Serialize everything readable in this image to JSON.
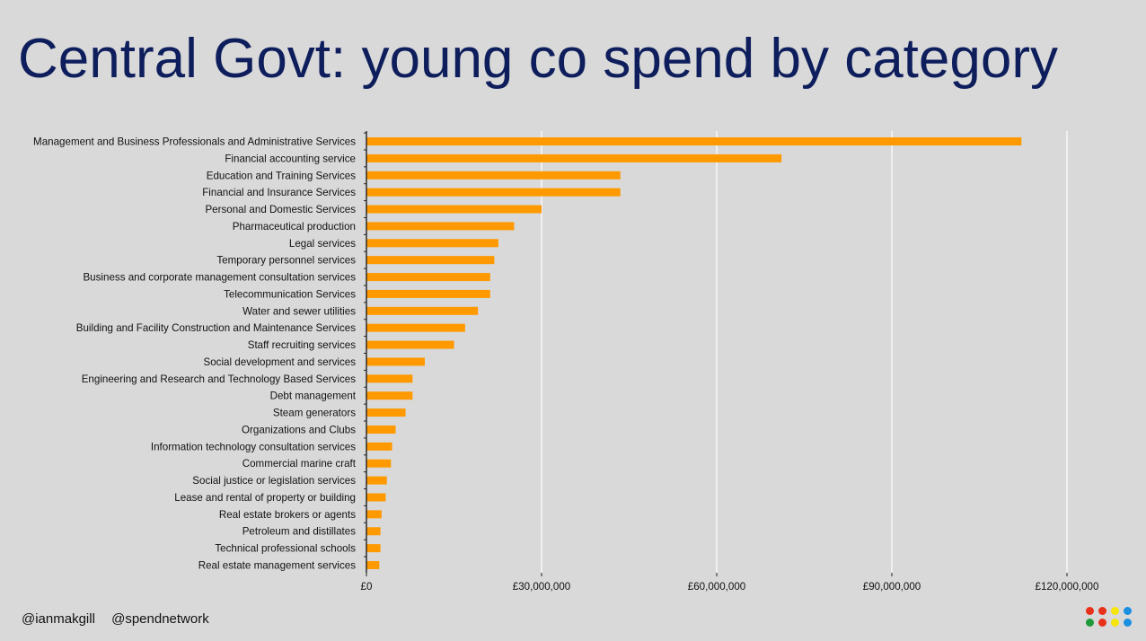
{
  "slide": {
    "title": "Central Govt: young co spend by category"
  },
  "footer": {
    "handle_1": "@ianmakgill",
    "handle_2": "@spendnetwork"
  },
  "logo": {
    "dot_colors": [
      "#e8311a",
      "#e8311a",
      "#f5e50a",
      "#1a8fe0",
      "#1f9a3a",
      "#e8311a",
      "#f5e50a",
      "#1a8fe0"
    ]
  },
  "colors": {
    "bar": "#ff9900",
    "title": "#0e1e5c",
    "background": "#d9d9d9",
    "gridline": "#ffffff"
  },
  "chart_data": {
    "type": "bar",
    "orientation": "horizontal",
    "title": "",
    "xlabel": "",
    "ylabel": "",
    "xlim": [
      0,
      120000000
    ],
    "grid": true,
    "categories": [
      "Management and Business Professionals and Administrative Services",
      "Financial accounting service",
      "Education and Training Services",
      "Financial and Insurance Services",
      "Personal and Domestic Services",
      "Pharmaceutical production",
      "Legal services",
      "Temporary personnel services",
      "Business and corporate management consultation services",
      "Telecommunication Services",
      "Water and sewer utilities",
      "Building and Facility Construction and Maintenance Services",
      "Staff recruiting services",
      "Social development and services",
      "Engineering and Research and Technology Based Services",
      "Debt management",
      "Steam generators",
      "Organizations and Clubs",
      "Information technology consultation services",
      "Commercial marine craft",
      "Social justice or legislation services",
      "Lease and rental of property or building",
      "Real estate brokers or agents",
      "Petroleum and distillates",
      "Technical professional schools",
      "Real estate management services"
    ],
    "values": [
      112200000,
      71100000,
      43500000,
      43500000,
      30000000,
      25300000,
      22600000,
      21900000,
      21200000,
      21200000,
      19100000,
      16900000,
      15000000,
      10000000,
      7900000,
      7900000,
      6700000,
      5000000,
      4400000,
      4200000,
      3500000,
      3300000,
      2600000,
      2400000,
      2400000,
      2200000
    ],
    "ticks": [
      {
        "value": 0,
        "label": "£0"
      },
      {
        "value": 30000000,
        "label": "£30,000,000"
      },
      {
        "value": 60000000,
        "label": "£60,000,000"
      },
      {
        "value": 90000000,
        "label": "£90,000,000"
      },
      {
        "value": 120000000,
        "label": "£120,000,000"
      }
    ]
  }
}
